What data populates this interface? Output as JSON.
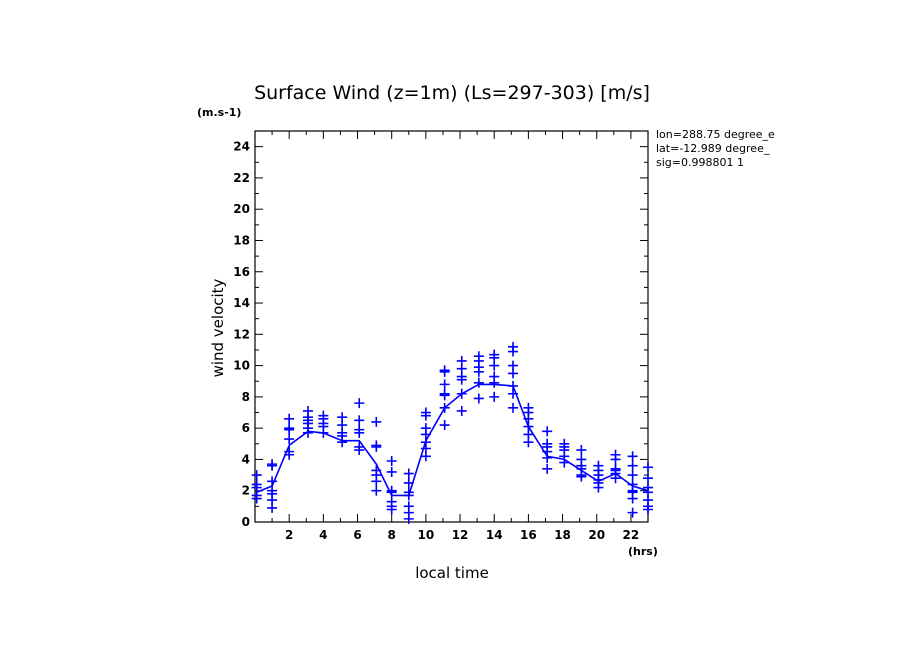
{
  "chart_data": {
    "type": "line",
    "title": "Surface Wind (z=1m) (Ls=297-303) [m/s]",
    "ylabel": "wind velocity",
    "xlabel": "local time",
    "yunit": "(m.s-1)",
    "xunit": "(hrs)",
    "xlim": [
      0,
      23
    ],
    "ylim": [
      0,
      25
    ],
    "xticks": [
      2,
      4,
      6,
      8,
      10,
      12,
      14,
      16,
      18,
      20,
      22
    ],
    "yticks": [
      0,
      2,
      4,
      6,
      8,
      10,
      12,
      14,
      16,
      18,
      20,
      22,
      24
    ],
    "grid": false,
    "info": [
      "lon=288.75 degree_e",
      "lat=-12.989 degree_",
      "sig=0.998801 1"
    ],
    "color": "#0000ff",
    "series": [
      {
        "style": "line",
        "x": [
          0.1,
          1.0,
          2.0,
          3.1,
          4.0,
          5.1,
          6.1,
          7.1,
          8.0,
          9.0,
          10.0,
          11.1,
          12.1,
          13.1,
          14.0,
          15.1,
          16.0,
          17.1,
          18.1,
          19.1,
          20.1,
          21.1,
          22.1,
          23.0
        ],
        "y": [
          1.9,
          2.3,
          4.9,
          5.8,
          5.7,
          5.2,
          5.2,
          3.7,
          1.7,
          1.7,
          5.2,
          7.3,
          8.2,
          8.8,
          8.8,
          8.7,
          6.1,
          4.2,
          4.0,
          3.3,
          2.6,
          3.1,
          2.3,
          2.0
        ]
      },
      {
        "style": "plus",
        "points": [
          [
            0.1,
            1.5
          ],
          [
            0.1,
            1.7
          ],
          [
            0.1,
            2.2
          ],
          [
            0.1,
            2.4
          ],
          [
            0.1,
            3.0
          ],
          [
            1.0,
            0.9
          ],
          [
            1.0,
            1.4
          ],
          [
            1.0,
            1.8
          ],
          [
            1.0,
            2.0
          ],
          [
            1.0,
            2.6
          ],
          [
            1.0,
            3.6
          ],
          [
            1.0,
            3.7
          ],
          [
            2.0,
            4.3
          ],
          [
            2.0,
            4.5
          ],
          [
            2.0,
            5.3
          ],
          [
            2.0,
            5.9
          ],
          [
            2.0,
            6.0
          ],
          [
            2.0,
            6.6
          ],
          [
            3.1,
            5.7
          ],
          [
            3.1,
            6.0
          ],
          [
            3.1,
            6.3
          ],
          [
            3.1,
            6.5
          ],
          [
            3.1,
            6.7
          ],
          [
            3.1,
            7.1
          ],
          [
            4.0,
            5.7
          ],
          [
            4.0,
            6.1
          ],
          [
            4.0,
            6.3
          ],
          [
            4.0,
            6.6
          ],
          [
            4.0,
            6.8
          ],
          [
            5.1,
            5.1
          ],
          [
            5.1,
            5.5
          ],
          [
            5.1,
            5.7
          ],
          [
            5.1,
            6.2
          ],
          [
            5.1,
            6.7
          ],
          [
            6.1,
            4.6
          ],
          [
            6.1,
            4.8
          ],
          [
            6.1,
            5.7
          ],
          [
            6.1,
            5.9
          ],
          [
            6.1,
            6.5
          ],
          [
            6.1,
            7.6
          ],
          [
            7.1,
            2.0
          ],
          [
            7.1,
            2.6
          ],
          [
            7.1,
            3.0
          ],
          [
            7.1,
            3.3
          ],
          [
            7.1,
            4.8
          ],
          [
            7.1,
            4.9
          ],
          [
            7.1,
            6.4
          ],
          [
            8.0,
            0.8
          ],
          [
            8.0,
            1.0
          ],
          [
            8.0,
            1.3
          ],
          [
            8.0,
            1.9
          ],
          [
            8.0,
            2.0
          ],
          [
            8.0,
            3.2
          ],
          [
            8.0,
            3.9
          ],
          [
            9.0,
            0.2
          ],
          [
            9.0,
            0.6
          ],
          [
            9.0,
            1.0
          ],
          [
            9.0,
            1.7
          ],
          [
            9.0,
            1.9
          ],
          [
            9.0,
            2.5
          ],
          [
            9.0,
            3.1
          ],
          [
            10.0,
            4.2
          ],
          [
            10.0,
            4.7
          ],
          [
            10.0,
            5.1
          ],
          [
            10.0,
            5.6
          ],
          [
            10.0,
            6.0
          ],
          [
            10.0,
            6.8
          ],
          [
            10.0,
            7.0
          ],
          [
            11.1,
            6.2
          ],
          [
            11.1,
            7.3
          ],
          [
            11.1,
            8.1
          ],
          [
            11.1,
            8.2
          ],
          [
            11.1,
            8.8
          ],
          [
            11.1,
            9.6
          ],
          [
            11.1,
            9.7
          ],
          [
            12.1,
            7.1
          ],
          [
            12.1,
            8.2
          ],
          [
            12.1,
            9.1
          ],
          [
            12.1,
            9.3
          ],
          [
            12.1,
            9.8
          ],
          [
            12.1,
            10.3
          ],
          [
            13.1,
            7.9
          ],
          [
            13.1,
            8.9
          ],
          [
            13.1,
            9.6
          ],
          [
            13.1,
            9.9
          ],
          [
            13.1,
            10.3
          ],
          [
            13.1,
            10.6
          ],
          [
            14.0,
            8.0
          ],
          [
            14.0,
            8.9
          ],
          [
            14.0,
            9.3
          ],
          [
            14.0,
            10.0
          ],
          [
            14.0,
            10.5
          ],
          [
            14.0,
            10.7
          ],
          [
            15.1,
            7.3
          ],
          [
            15.1,
            8.2
          ],
          [
            15.1,
            8.7
          ],
          [
            15.1,
            9.5
          ],
          [
            15.1,
            10.0
          ],
          [
            15.1,
            10.9
          ],
          [
            15.1,
            11.2
          ],
          [
            16.0,
            5.1
          ],
          [
            16.0,
            5.6
          ],
          [
            16.0,
            6.1
          ],
          [
            16.0,
            6.6
          ],
          [
            16.0,
            7.0
          ],
          [
            16.0,
            7.3
          ],
          [
            17.1,
            3.4
          ],
          [
            17.1,
            4.1
          ],
          [
            17.1,
            4.5
          ],
          [
            17.1,
            4.8
          ],
          [
            17.1,
            5.0
          ],
          [
            17.1,
            5.8
          ],
          [
            18.1,
            3.8
          ],
          [
            18.1,
            4.2
          ],
          [
            18.1,
            4.6
          ],
          [
            18.1,
            4.8
          ],
          [
            18.1,
            5.0
          ],
          [
            19.1,
            2.9
          ],
          [
            19.1,
            3.0
          ],
          [
            19.1,
            3.4
          ],
          [
            19.1,
            3.6
          ],
          [
            19.1,
            4.0
          ],
          [
            19.1,
            4.6
          ],
          [
            20.1,
            2.2
          ],
          [
            20.1,
            2.5
          ],
          [
            20.1,
            2.7
          ],
          [
            20.1,
            3.0
          ],
          [
            20.1,
            3.3
          ],
          [
            20.1,
            3.6
          ],
          [
            21.1,
            2.8
          ],
          [
            21.1,
            3.1
          ],
          [
            21.1,
            3.3
          ],
          [
            21.1,
            3.4
          ],
          [
            21.1,
            4.0
          ],
          [
            21.1,
            4.3
          ],
          [
            22.1,
            0.6
          ],
          [
            22.1,
            1.5
          ],
          [
            22.1,
            1.9
          ],
          [
            22.1,
            2.0
          ],
          [
            22.1,
            2.4
          ],
          [
            22.1,
            3.0
          ],
          [
            22.1,
            3.6
          ],
          [
            22.1,
            4.2
          ],
          [
            23.0,
            0.8
          ],
          [
            23.0,
            1.0
          ],
          [
            23.0,
            1.4
          ],
          [
            23.0,
            1.9
          ],
          [
            23.0,
            2.2
          ],
          [
            23.0,
            2.8
          ],
          [
            23.0,
            3.5
          ]
        ]
      }
    ]
  }
}
